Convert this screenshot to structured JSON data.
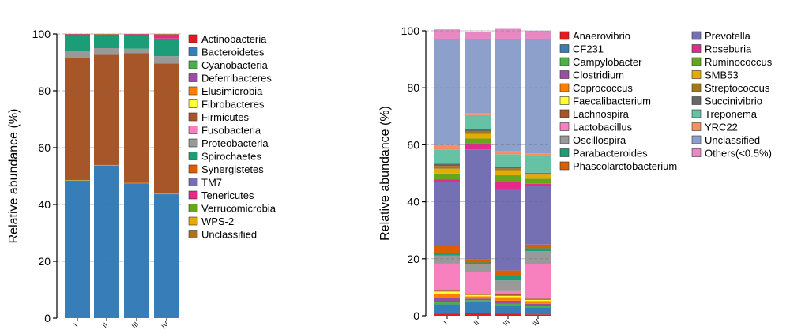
{
  "chart_data": [
    {
      "type": "bar",
      "stacked": true,
      "title": "",
      "xlabel": "",
      "ylabel": "Relative abundance (%)",
      "ylim": [
        0,
        100
      ],
      "yticks": [
        0,
        20,
        40,
        60,
        80,
        100
      ],
      "grid": "dashed horizontal",
      "legend_position": "right",
      "categories": [
        "I",
        "II",
        "III",
        "IV"
      ],
      "series": [
        {
          "name": "Actinobacteria",
          "color": "#e41a1c",
          "values": [
            0.2,
            0.2,
            0.2,
            0.2
          ]
        },
        {
          "name": "Bacteroidetes",
          "color": "#377eb8",
          "values": [
            48.2,
            53.5,
            47.2,
            43.4
          ]
        },
        {
          "name": "Cyanobacteria",
          "color": "#4daf4a",
          "values": [
            0.1,
            0.1,
            0.1,
            0.1
          ]
        },
        {
          "name": "Deferribacteres",
          "color": "#984ea3",
          "values": [
            0.0,
            0.0,
            0.0,
            0.0
          ]
        },
        {
          "name": "Elusimicrobia",
          "color": "#ff7f00",
          "values": [
            0.1,
            0.1,
            0.1,
            0.1
          ]
        },
        {
          "name": "Fibrobacteres",
          "color": "#ffff33",
          "values": [
            0.0,
            0.0,
            0.0,
            0.0
          ]
        },
        {
          "name": "Firmicutes",
          "color": "#a65628",
          "values": [
            42.9,
            38.8,
            45.6,
            45.8
          ]
        },
        {
          "name": "Fusobacteria",
          "color": "#f781bf",
          "values": [
            0.0,
            0.0,
            0.0,
            0.0
          ]
        },
        {
          "name": "Proteobacteria",
          "color": "#999999",
          "values": [
            2.6,
            2.3,
            1.6,
            2.6
          ]
        },
        {
          "name": "Spirochaetes",
          "color": "#1b9e77",
          "values": [
            5.2,
            4.2,
            4.5,
            6.2
          ]
        },
        {
          "name": "Synergistetes",
          "color": "#d95f02",
          "values": [
            0.0,
            0.0,
            0.0,
            0.0
          ]
        },
        {
          "name": "TM7",
          "color": "#7570b3",
          "values": [
            0.0,
            0.0,
            0.0,
            0.0
          ]
        },
        {
          "name": "Tenericutes",
          "color": "#e7298a",
          "values": [
            0.6,
            0.6,
            0.6,
            1.4
          ]
        },
        {
          "name": "Verrucomicrobia",
          "color": "#66a61e",
          "values": [
            0.0,
            0.0,
            0.0,
            0.0
          ]
        },
        {
          "name": "WPS-2",
          "color": "#e6ab02",
          "values": [
            0.0,
            0.0,
            0.0,
            0.0
          ]
        },
        {
          "name": "Unclassified",
          "color": "#a6761d",
          "values": [
            0.1,
            0.2,
            0.1,
            0.2
          ]
        }
      ]
    },
    {
      "type": "bar",
      "stacked": true,
      "title": "",
      "xlabel": "",
      "ylabel": "Relative abundance (%)",
      "ylim": [
        0,
        100
      ],
      "yticks": [
        0,
        20,
        40,
        60,
        80,
        100
      ],
      "grid": "dashed horizontal",
      "legend_position": "right",
      "categories": [
        "I",
        "II",
        "III",
        "IV"
      ],
      "series": [
        {
          "name": "Anaerovibrio",
          "color": "#e41a1c",
          "values": [
            0.8,
            1.0,
            0.8,
            0.5
          ]
        },
        {
          "name": "CF231",
          "color": "#377eb8",
          "values": [
            3.2,
            4.0,
            2.7,
            2.5
          ]
        },
        {
          "name": "Campylobacter",
          "color": "#4daf4a",
          "values": [
            0.8,
            0.5,
            0.8,
            0.6
          ]
        },
        {
          "name": "Clostridium",
          "color": "#984ea3",
          "values": [
            1.3,
            0.5,
            1.0,
            0.6
          ]
        },
        {
          "name": "Coprococcus",
          "color": "#ff7f00",
          "values": [
            1.6,
            0.8,
            1.2,
            1.0
          ]
        },
        {
          "name": "Faecalibacterium",
          "color": "#ffff33",
          "values": [
            0.8,
            0.5,
            0.5,
            0.4
          ]
        },
        {
          "name": "Lachnospira",
          "color": "#a65628",
          "values": [
            0.6,
            0.4,
            0.5,
            0.4
          ]
        },
        {
          "name": "Lactobacillus",
          "color": "#f781bf",
          "values": [
            9.2,
            7.8,
            1.4,
            12.2
          ]
        },
        {
          "name": "Oscillospira",
          "color": "#999999",
          "values": [
            2.8,
            2.7,
            3.5,
            4.5
          ]
        },
        {
          "name": "Parabacteroides",
          "color": "#1b9e77",
          "values": [
            0.8,
            0.5,
            1.5,
            1.0
          ]
        },
        {
          "name": "Phascolarctobacterium",
          "color": "#d95f02",
          "values": [
            2.5,
            1.2,
            2.0,
            1.3
          ]
        },
        {
          "name": "Prevotella",
          "color": "#7570b3",
          "values": [
            22.5,
            38.5,
            28.5,
            20.5
          ]
        },
        {
          "name": "Roseburia",
          "color": "#e7298a",
          "values": [
            1.0,
            2.0,
            2.5,
            0.8
          ]
        },
        {
          "name": "Ruminococcus",
          "color": "#66a61e",
          "values": [
            2.0,
            1.8,
            2.4,
            1.8
          ]
        },
        {
          "name": "SMB53",
          "color": "#e6ab02",
          "values": [
            1.7,
            1.6,
            1.8,
            1.4
          ]
        },
        {
          "name": "Streptococcus",
          "color": "#a6761d",
          "values": [
            1.0,
            0.8,
            0.6,
            0.4
          ]
        },
        {
          "name": "Succinivibrio",
          "color": "#666666",
          "values": [
            0.8,
            0.8,
            0.5,
            0.3
          ]
        },
        {
          "name": "Treponema",
          "color": "#66c2a5",
          "values": [
            5.0,
            5.0,
            4.5,
            5.8
          ]
        },
        {
          "name": "YRC22",
          "color": "#fc8d62",
          "values": [
            1.5,
            0.6,
            1.0,
            1.0
          ]
        },
        {
          "name": "Unclassified",
          "color": "#8da0cb",
          "values": [
            37.1,
            26.0,
            39.5,
            40.0
          ]
        },
        {
          "name": "Others(<0.5%)",
          "color": "#e78ac3",
          "values": [
            3.5,
            2.5,
            3.5,
            3.0
          ]
        }
      ]
    }
  ]
}
